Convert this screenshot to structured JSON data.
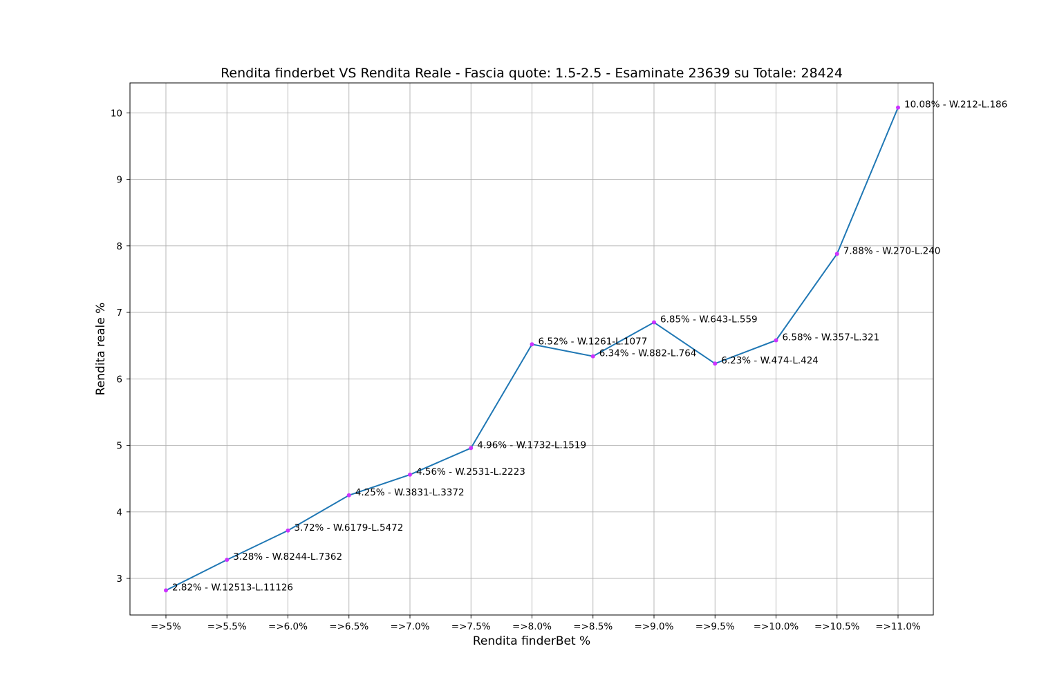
{
  "chart_data": {
    "type": "line",
    "title": "Rendita finderbet VS Rendita Reale - Fascia quote: 1.5-2.5 - Esaminate 23639 su Totale: 28424",
    "xlabel": "Rendita finderBet %",
    "ylabel": "Rendita reale %",
    "categories": [
      "=>5%",
      "=>5.5%",
      "=>6.0%",
      "=>6.5%",
      "=>7.0%",
      "=>7.5%",
      "=>8.0%",
      "=>8.5%",
      "=>9.0%",
      "=>9.5%",
      "=>10.0%",
      "=>10.5%",
      "=>11.0%"
    ],
    "series": [
      {
        "values": [
          2.82,
          3.28,
          3.72,
          4.25,
          4.56,
          4.96,
          6.52,
          6.34,
          6.85,
          6.23,
          6.58,
          7.88,
          10.08
        ],
        "color": "#1f77b4",
        "marker_color": "#cc33ff"
      }
    ],
    "data_labels": [
      "2.82% - W.12513-L.11126",
      "3.28% - W.8244-L.7362",
      "3.72% - W.6179-L.5472",
      "4.25% - W.3831-L.3372",
      "4.56% - W.2531-L.2223",
      "4.96% - W.1732-L.1519",
      "6.52% - W.1261-L.1077",
      "6.34% - W.882-L.764",
      "6.85% - W.643-L.559",
      "6.23% - W.474-L.424",
      "6.58% - W.357-L.321",
      "7.88% - W.270-L.240",
      "10.08% - W.212-L.186"
    ],
    "yticks": [
      "3",
      "4",
      "5",
      "6",
      "7",
      "8",
      "9",
      "10"
    ],
    "ylim": [
      2.45,
      10.45
    ],
    "grid": true
  }
}
